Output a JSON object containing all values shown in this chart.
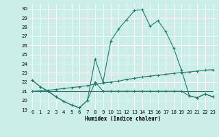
{
  "xlabel": "Humidex (Indice chaleur)",
  "bg_color": "#cceee8",
  "grid_color": "#ffffff",
  "line_color": "#1a7a6a",
  "xlim": [
    -0.5,
    23.5
  ],
  "ylim": [
    19,
    30.5
  ],
  "xticks": [
    0,
    1,
    2,
    3,
    4,
    5,
    6,
    7,
    8,
    9,
    10,
    11,
    12,
    13,
    14,
    15,
    16,
    17,
    18,
    19,
    20,
    21,
    22,
    23
  ],
  "yticks": [
    19,
    20,
    21,
    22,
    23,
    24,
    25,
    26,
    27,
    28,
    29,
    30
  ],
  "series1_x": [
    0,
    1,
    2,
    3,
    4,
    5,
    6,
    7,
    8,
    9,
    10,
    11,
    12,
    13,
    14,
    15,
    16,
    17,
    18,
    19,
    20,
    21,
    22,
    23
  ],
  "series1_y": [
    22.2,
    21.5,
    21.0,
    20.4,
    19.9,
    19.5,
    19.2,
    20.0,
    24.5,
    22.0,
    26.5,
    27.8,
    28.8,
    29.8,
    29.9,
    28.1,
    28.7,
    27.5,
    25.7,
    23.3,
    20.5,
    20.3,
    20.7,
    20.4
  ],
  "series2_x": [
    0,
    1,
    2,
    3,
    4,
    5,
    6,
    7,
    8,
    9,
    10,
    11,
    12,
    13,
    14,
    15,
    16,
    17,
    18,
    19,
    20,
    21,
    22,
    23
  ],
  "series2_y": [
    21.0,
    21.05,
    21.1,
    21.2,
    21.3,
    21.4,
    21.5,
    21.6,
    21.8,
    21.9,
    22.0,
    22.1,
    22.3,
    22.4,
    22.55,
    22.65,
    22.75,
    22.85,
    22.95,
    23.05,
    23.1,
    23.2,
    23.3,
    23.35
  ],
  "series3_x": [
    0,
    1,
    2,
    3,
    4,
    5,
    6,
    7,
    8,
    9,
    10,
    11,
    12,
    13,
    14,
    15,
    16,
    17,
    18,
    19,
    20,
    21,
    22,
    23
  ],
  "series3_y": [
    21.0,
    21.0,
    21.0,
    21.0,
    21.0,
    21.0,
    21.0,
    21.0,
    21.0,
    21.0,
    21.0,
    21.0,
    21.0,
    21.0,
    21.0,
    21.0,
    21.0,
    21.0,
    21.0,
    21.0,
    21.0,
    21.0,
    21.0,
    21.0
  ],
  "series4_x": [
    0,
    1,
    2,
    3,
    4,
    5,
    6,
    7,
    8,
    9,
    10,
    11,
    12,
    13,
    14,
    15,
    16,
    17,
    18,
    19,
    20,
    21,
    22,
    23
  ],
  "series4_y": [
    22.2,
    21.5,
    21.0,
    20.4,
    19.9,
    19.5,
    19.2,
    20.0,
    22.0,
    21.0,
    21.0,
    21.0,
    21.0,
    21.0,
    21.0,
    21.0,
    21.0,
    21.0,
    21.0,
    21.0,
    20.5,
    20.3,
    20.7,
    20.4
  ]
}
